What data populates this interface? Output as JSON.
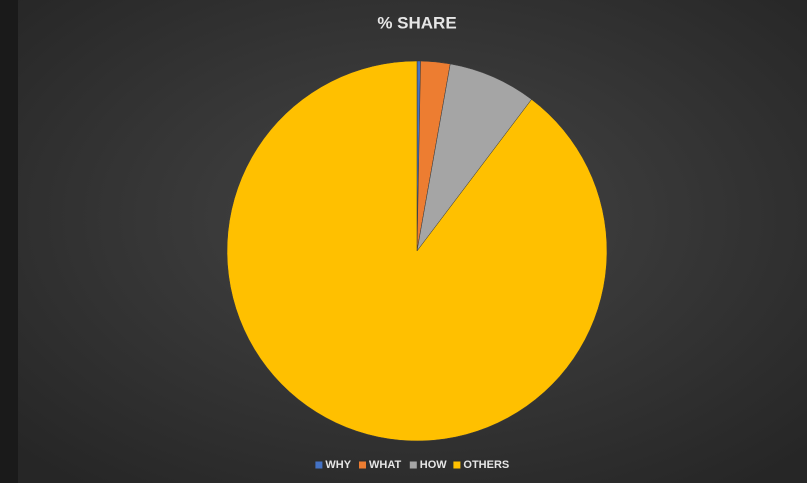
{
  "chart_data": {
    "type": "pie",
    "title": "% SHARE",
    "categories": [
      "WHY",
      "WHAT",
      "HOW",
      "OTHERS"
    ],
    "values": [
      0.3,
      2.5,
      7.5,
      89.7
    ],
    "colors": [
      "#4472c4",
      "#ed7d31",
      "#a5a5a5",
      "#ffc000"
    ],
    "legend": "bottom"
  }
}
